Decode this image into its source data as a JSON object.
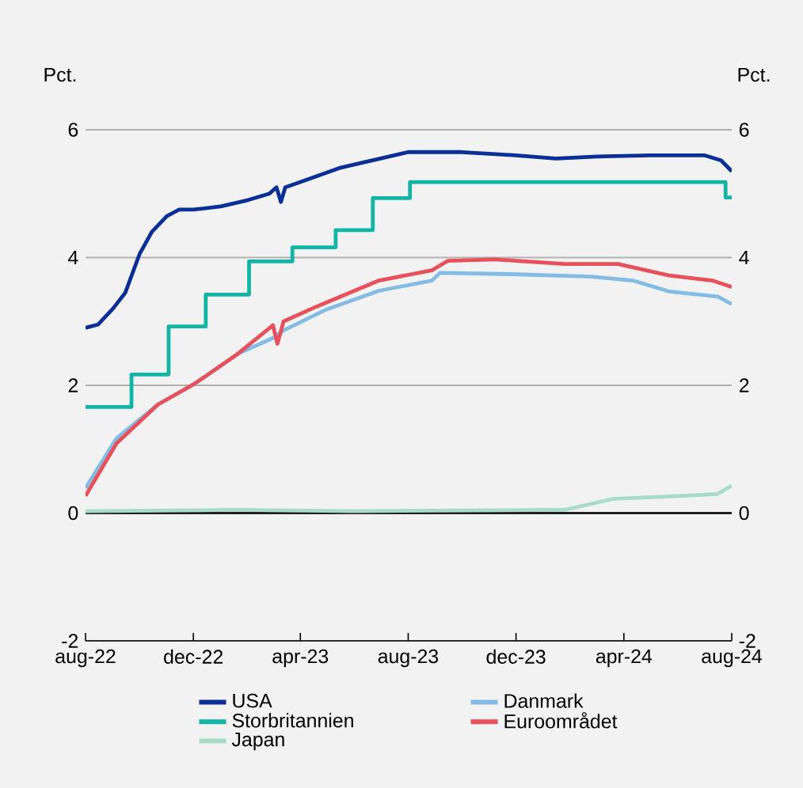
{
  "chart_data": {
    "type": "line",
    "ylabel": "Pct.",
    "y2label": "Pct.",
    "xlim": [
      "2022-08-01",
      "2024-08-01"
    ],
    "xticks": [
      {
        "value": "2022-08-01",
        "label": "aug-22"
      },
      {
        "value": "2022-12-01",
        "label": "dec-22"
      },
      {
        "value": "2023-04-01",
        "label": "apr-23"
      },
      {
        "value": "2023-08-01",
        "label": "aug-23"
      },
      {
        "value": "2023-12-01",
        "label": "dec-23"
      },
      {
        "value": "2024-04-01",
        "label": "apr-24"
      },
      {
        "value": "2024-08-01",
        "label": "aug-24"
      }
    ],
    "ylim": [
      -2,
      6
    ],
    "yticks": [
      -2,
      0,
      2,
      4,
      6
    ],
    "y2lim": [
      -2,
      6
    ],
    "y2ticks": [
      -2,
      0,
      2,
      4,
      6
    ],
    "grid": "y",
    "legend": "bottom",
    "line_style": "solid",
    "ref_lines": [
      {
        "axis": "y",
        "value": 0,
        "color": "#000000"
      }
    ],
    "series": [
      {
        "name": "USA",
        "color": "#0a2f96",
        "x": [
          "2022-08-01",
          "2022-08-15",
          "2022-09-01",
          "2022-09-15",
          "2022-10-01",
          "2022-10-15",
          "2022-11-01",
          "2022-11-15",
          "2022-12-01",
          "2023-01-01",
          "2023-02-01",
          "2023-02-25",
          "2023-03-05",
          "2023-03-10",
          "2023-03-15",
          "2023-04-15",
          "2023-05-15",
          "2023-06-15",
          "2023-08-01",
          "2023-10-01",
          "2023-12-01",
          "2024-01-15",
          "2024-03-01",
          "2024-05-01",
          "2024-07-01",
          "2024-07-20",
          "2024-08-01"
        ],
        "values": [
          2.9,
          2.95,
          3.2,
          3.45,
          4.05,
          4.4,
          4.65,
          4.75,
          4.75,
          4.8,
          4.9,
          5.0,
          5.1,
          4.87,
          5.1,
          5.25,
          5.4,
          5.5,
          5.65,
          5.65,
          5.6,
          5.55,
          5.58,
          5.6,
          5.6,
          5.52,
          5.35
        ]
      },
      {
        "name": "Danmark",
        "color": "#85bce6",
        "x": [
          "2022-08-01",
          "2022-09-05",
          "2022-10-22",
          "2022-12-03",
          "2023-01-20",
          "2023-03-01",
          "2023-03-13",
          "2023-05-01",
          "2023-06-29",
          "2023-08-28",
          "2023-09-06",
          "2023-11-25",
          "2024-02-24",
          "2024-04-11",
          "2024-05-22",
          "2024-07-16",
          "2024-08-01"
        ],
        "values": [
          0.39,
          1.17,
          1.7,
          2.03,
          2.49,
          2.74,
          2.86,
          3.19,
          3.48,
          3.64,
          3.76,
          3.74,
          3.7,
          3.64,
          3.47,
          3.39,
          3.27
        ]
      },
      {
        "name": "Storbritannien",
        "color": "#14b4a4",
        "type": "step",
        "x": [
          "2022-08-01",
          "2022-09-22",
          "2022-11-03",
          "2022-12-15",
          "2023-02-02",
          "2023-03-23",
          "2023-05-11",
          "2023-06-22",
          "2023-08-03",
          "2024-07-25",
          "2024-08-01"
        ],
        "values": [
          1.66,
          2.17,
          2.92,
          3.42,
          3.94,
          4.16,
          4.43,
          4.93,
          5.18,
          4.94,
          4.94
        ]
      },
      {
        "name": "Euroområdet",
        "color": "#e8505b",
        "x": [
          "2022-08-01",
          "2022-09-05",
          "2022-10-22",
          "2022-12-03",
          "2023-01-20",
          "2023-03-01",
          "2023-03-06",
          "2023-03-13",
          "2023-04-19",
          "2023-06-29",
          "2023-08-28",
          "2023-09-15",
          "2023-11-07",
          "2024-01-25",
          "2024-03-25",
          "2024-05-22",
          "2024-07-10",
          "2024-08-01"
        ],
        "values": [
          0.27,
          1.09,
          1.7,
          2.03,
          2.49,
          2.94,
          2.65,
          3.0,
          3.23,
          3.64,
          3.8,
          3.95,
          3.97,
          3.9,
          3.9,
          3.72,
          3.64,
          3.54
        ]
      },
      {
        "name": "Japan",
        "color": "#a8dcc8",
        "x": [
          "2022-08-01",
          "2023-01-20",
          "2023-06-01",
          "2024-01-25",
          "2024-03-19",
          "2024-06-22",
          "2024-07-16",
          "2024-08-01"
        ],
        "values": [
          0.03,
          0.05,
          0.03,
          0.05,
          0.22,
          0.28,
          0.3,
          0.43
        ]
      }
    ]
  }
}
